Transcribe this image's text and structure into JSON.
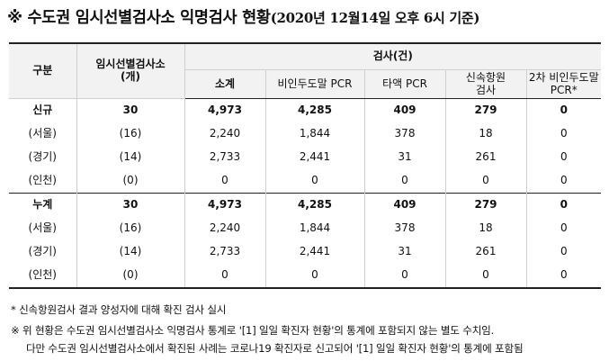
{
  "title": {
    "prefix": "※ 수도권 임시선별검사소 익명검사 현황",
    "date_note": "(2020년 12월14일 오후 6시 기준)"
  },
  "table": {
    "header": {
      "col_category": "구분",
      "col_sites": "임시선별검사소\n(개)",
      "group_tests": "검사(건)",
      "sub_total": "소계",
      "sub_nasal": "비인두도말 PCR",
      "sub_saliva": "타액 PCR",
      "sub_rapid": "신속항원\n검사",
      "sub_second": "2차 비인두도말\nPCR*"
    },
    "rows": [
      {
        "label": "신규",
        "sites": "30",
        "total": "4,973",
        "nasal": "4,285",
        "saliva": "409",
        "rapid": "279",
        "second": "0"
      },
      {
        "label": "(서울)",
        "sites": "(16)",
        "total": "2,240",
        "nasal": "1,844",
        "saliva": "378",
        "rapid": "18",
        "second": "0"
      },
      {
        "label": "(경기)",
        "sites": "(14)",
        "total": "2,733",
        "nasal": "2,441",
        "saliva": "31",
        "rapid": "261",
        "second": "0"
      },
      {
        "label": "(인천)",
        "sites": "(0)",
        "total": "0",
        "nasal": "0",
        "saliva": "0",
        "rapid": "0",
        "second": "0"
      },
      {
        "label": "누계",
        "sites": "30",
        "total": "4,973",
        "nasal": "4,285",
        "saliva": "409",
        "rapid": "279",
        "second": "0"
      },
      {
        "label": "(서울)",
        "sites": "(16)",
        "total": "2,240",
        "nasal": "1,844",
        "saliva": "378",
        "rapid": "18",
        "second": "0"
      },
      {
        "label": "(경기)",
        "sites": "(14)",
        "total": "2,733",
        "nasal": "2,441",
        "saliva": "31",
        "rapid": "261",
        "second": "0"
      },
      {
        "label": "(인천)",
        "sites": "(0)",
        "total": "0",
        "nasal": "0",
        "saliva": "0",
        "rapid": "0",
        "second": "0"
      }
    ]
  },
  "notes": {
    "footnote": "* 신속항원검사 결과 양성자에 대해 확진 검사 실시",
    "remark_line1": "※ 위 현황은 수도권 임시선별검사소 익명검사 통계로 '[1] 일일 확진자 현황'의 통계에 포함되지 않는 별도 수치임.",
    "remark_line2": "다만 수도권 임시선별검사소에서 확진된 사례는 코로나19 확진자로 신고되어 '[1] 일일 확진자 현황'의 통계에 포함됨"
  }
}
